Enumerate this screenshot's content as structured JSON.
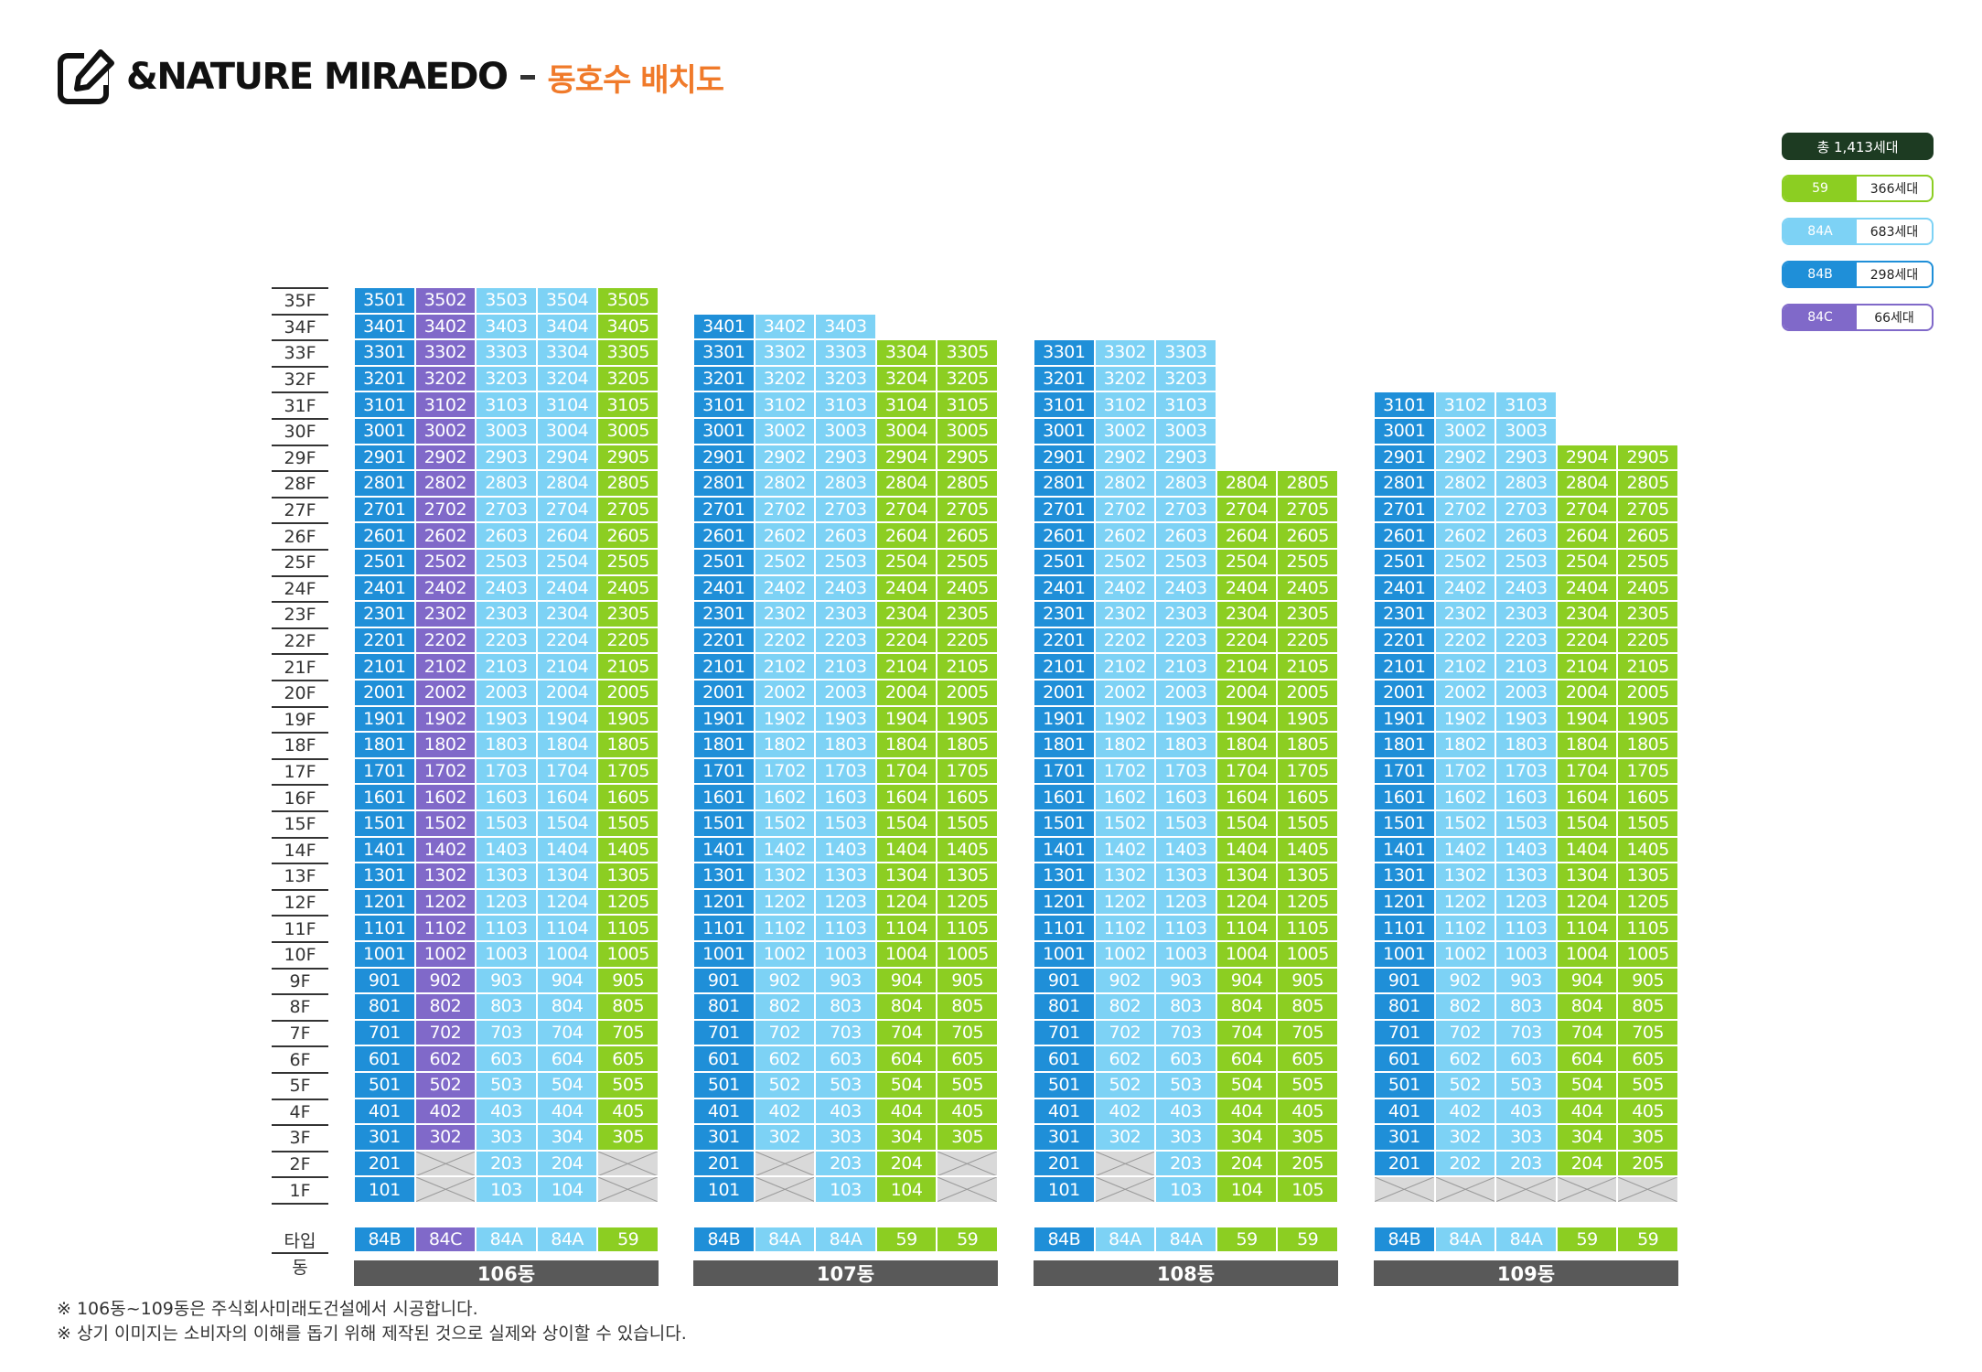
{
  "header": {
    "title": "&NATURE MIRAEDO",
    "subtitle": "동호수 배치도",
    "icon": "edit-icon"
  },
  "colors": {
    "59": "#8cce22",
    "84A": "#7dd2f5",
    "84B": "#1f8fd8",
    "84C": "#8069c9",
    "total": "#1d3b22",
    "building_bar": "#595959",
    "void": "#d9d9d9"
  },
  "legend": {
    "total": "총 1,413세대",
    "items": [
      {
        "type": "59",
        "count": "366세대"
      },
      {
        "type": "84A",
        "count": "683세대"
      },
      {
        "type": "84B",
        "count": "298세대"
      },
      {
        "type": "84C",
        "count": "66세대"
      }
    ]
  },
  "floors": [
    "35F",
    "34F",
    "33F",
    "32F",
    "31F",
    "30F",
    "29F",
    "28F",
    "27F",
    "26F",
    "25F",
    "24F",
    "23F",
    "22F",
    "21F",
    "20F",
    "19F",
    "18F",
    "17F",
    "16F",
    "15F",
    "14F",
    "13F",
    "12F",
    "11F",
    "10F",
    "9F",
    "8F",
    "7F",
    "6F",
    "5F",
    "4F",
    "3F",
    "2F",
    "1F"
  ],
  "axis": {
    "type_label": "타입",
    "building_label": "동"
  },
  "buildings": [
    {
      "name": "106동",
      "types": [
        "84B",
        "84C",
        "84A",
        "84A",
        "59"
      ],
      "top_floors": [
        35,
        35,
        35,
        35,
        35
      ],
      "start_floors": [
        1,
        3,
        1,
        1,
        3
      ]
    },
    {
      "name": "107동",
      "types": [
        "84B",
        "84A",
        "84A",
        "59",
        "59"
      ],
      "top_floors": [
        34,
        34,
        34,
        33,
        33
      ],
      "start_floors": [
        1,
        3,
        1,
        1,
        3
      ]
    },
    {
      "name": "108동",
      "types": [
        "84B",
        "84A",
        "84A",
        "59",
        "59"
      ],
      "top_floors": [
        33,
        33,
        33,
        28,
        28
      ],
      "start_floors": [
        1,
        3,
        1,
        1,
        1
      ]
    },
    {
      "name": "109동",
      "types": [
        "84B",
        "84A",
        "84A",
        "59",
        "59"
      ],
      "top_floors": [
        31,
        31,
        31,
        29,
        29
      ],
      "start_floors": [
        2,
        2,
        2,
        2,
        2
      ]
    }
  ],
  "notes": [
    "※ 106동~109동은 주식회사미래도건설에서 시공합니다.",
    "※  상기 이미지는 소비자의 이해를 돕기 위해 제작된 것으로 실제와 상이할 수 있습니다."
  ]
}
